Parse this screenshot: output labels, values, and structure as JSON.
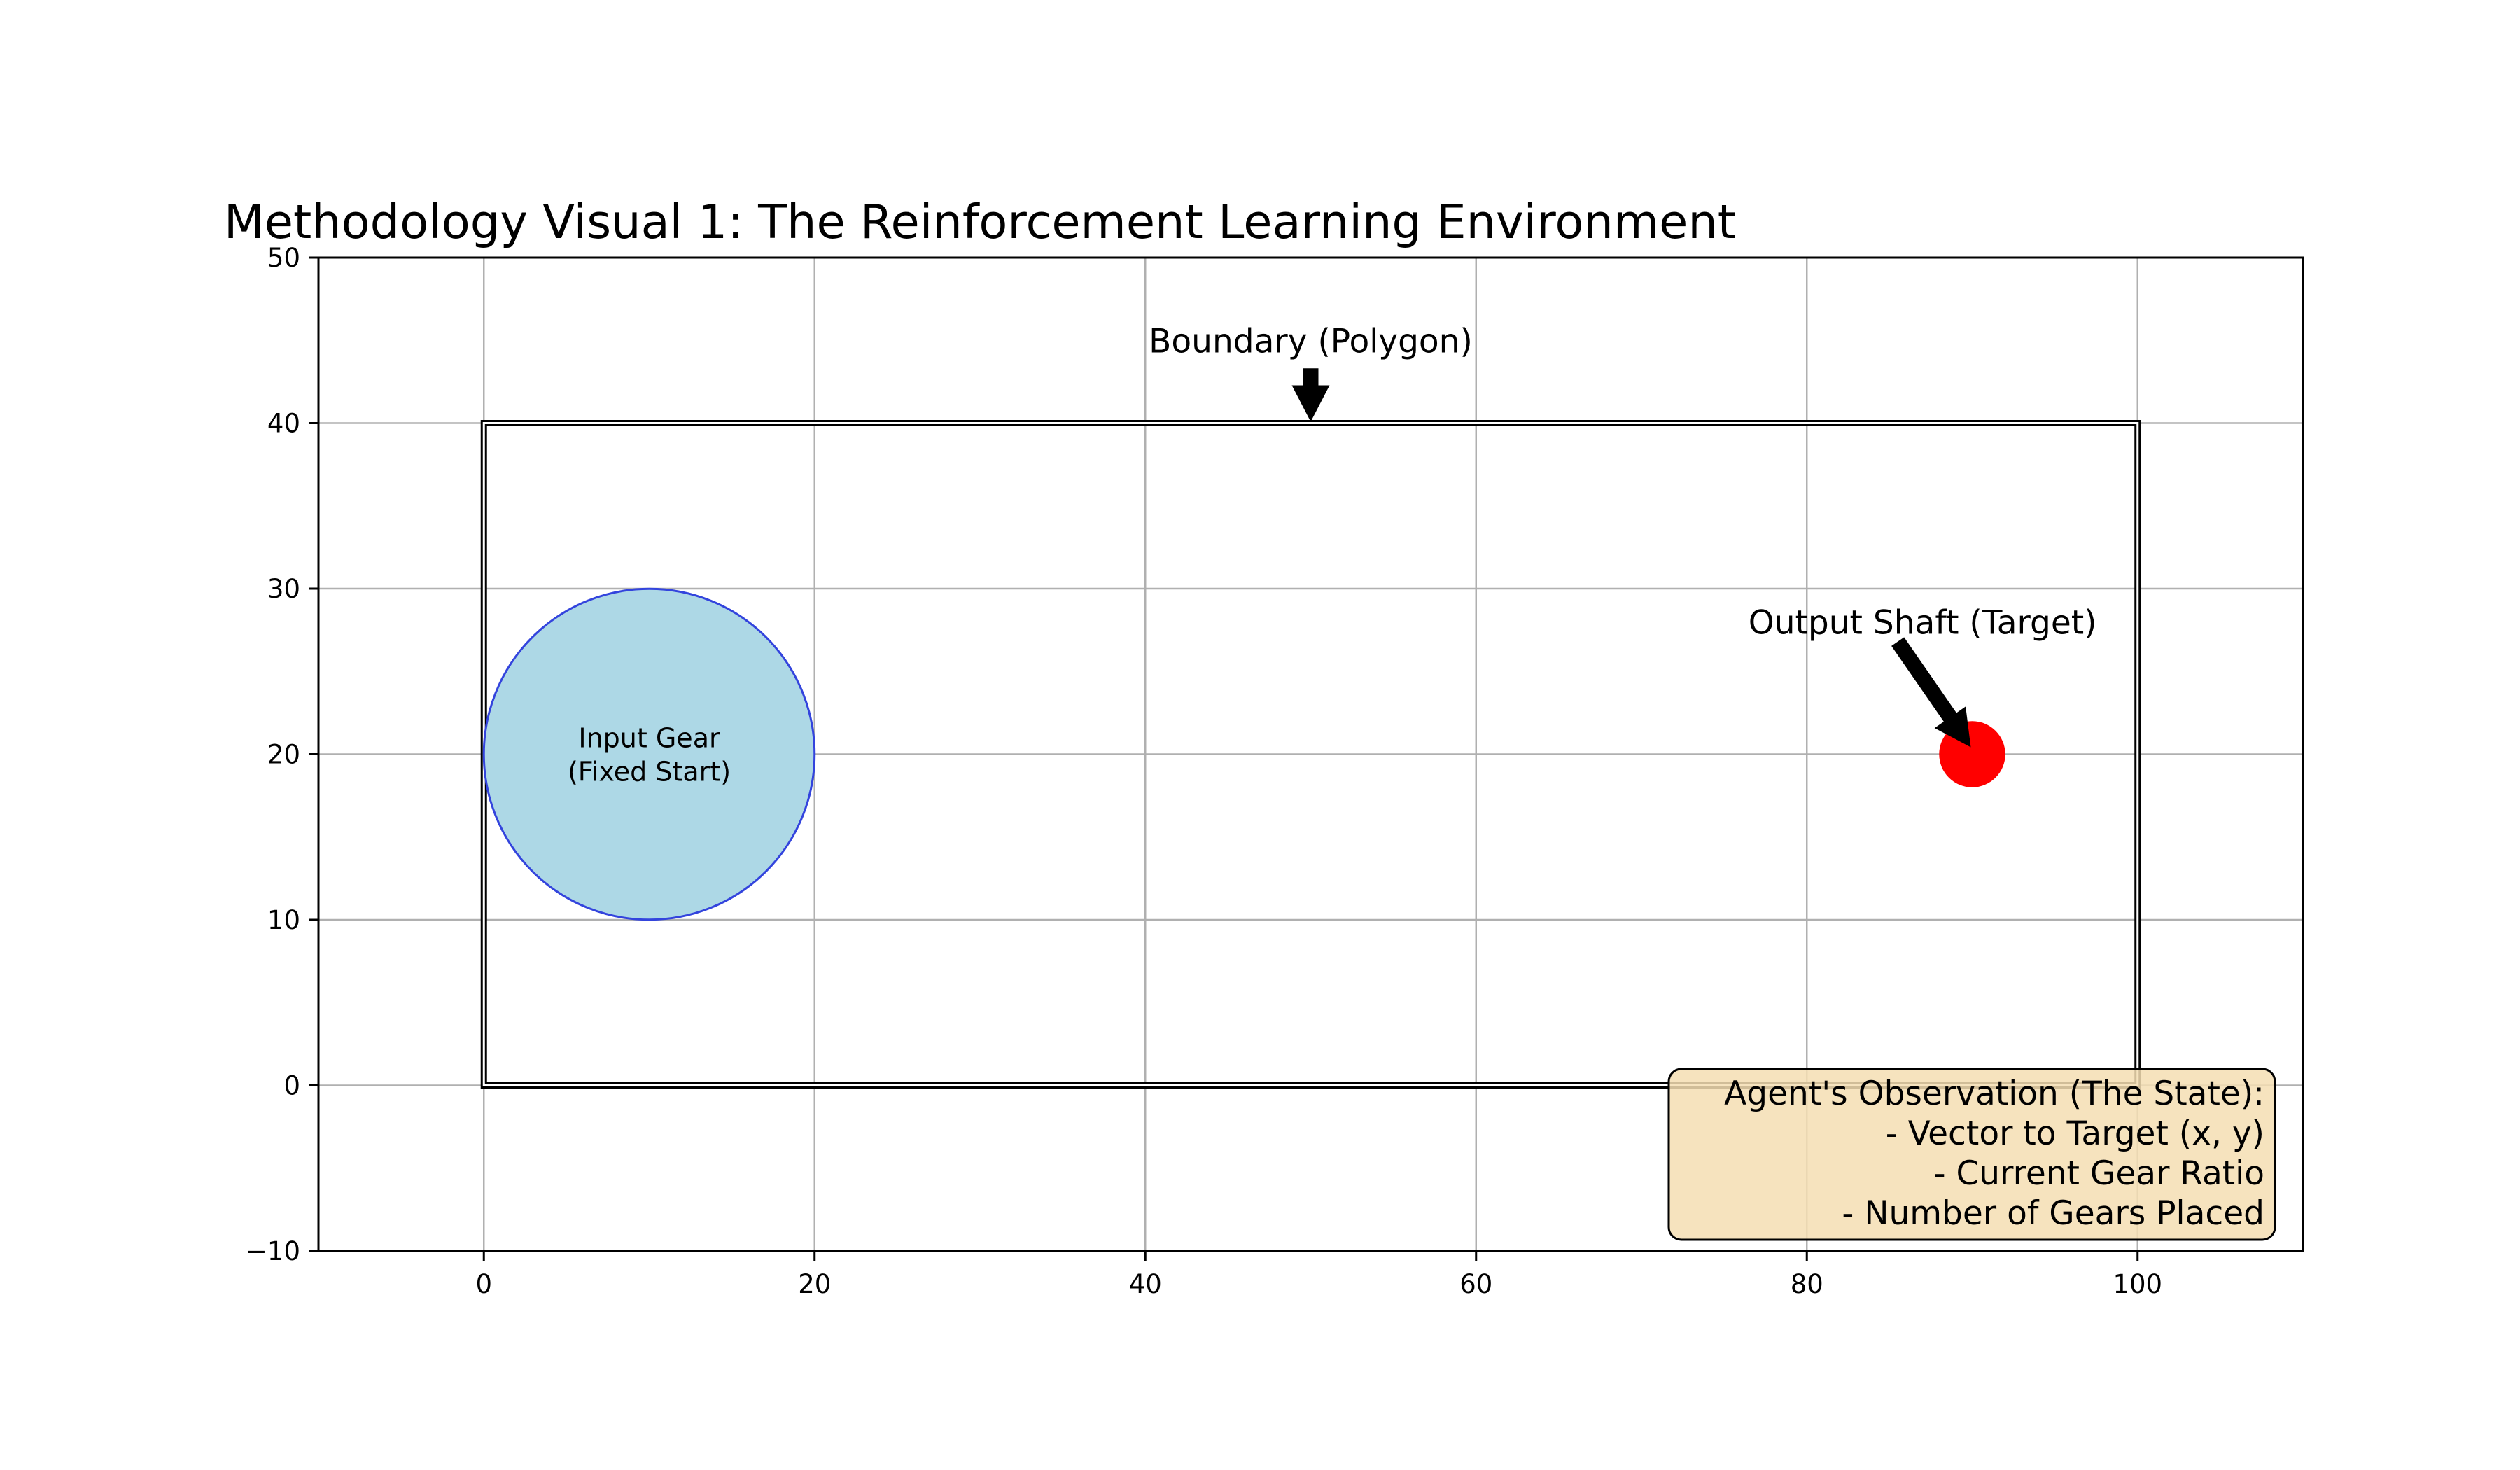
{
  "chart_data": {
    "type": "diagram",
    "title": "Methodology Visual 1: The Reinforcement Learning Environment",
    "xlabel": "",
    "ylabel": "",
    "xlim": [
      -10,
      110
    ],
    "ylim": [
      -10,
      50
    ],
    "grid": true,
    "x_ticks": [
      0,
      20,
      40,
      60,
      80,
      100
    ],
    "y_ticks": [
      -10,
      0,
      10,
      20,
      30,
      40,
      50
    ],
    "x_tick_labels": [
      "0",
      "20",
      "40",
      "60",
      "80",
      "100"
    ],
    "y_tick_labels": [
      "−10",
      "0",
      "10",
      "20",
      "30",
      "40",
      "50"
    ],
    "boundary": {
      "shape": "polygon",
      "points": [
        [
          0,
          0
        ],
        [
          100,
          0
        ],
        [
          100,
          40
        ],
        [
          0,
          40
        ]
      ],
      "label": "Boundary (Polygon)",
      "label_position": [
        50,
        45
      ],
      "arrow_tip": [
        50,
        40
      ]
    },
    "input_gear": {
      "center": [
        10,
        20
      ],
      "radius": 10,
      "fill": "#add8e6",
      "edge": "#3344dd",
      "label_lines": [
        "Input Gear",
        "(Fixed Start)"
      ]
    },
    "output_shaft": {
      "center": [
        90,
        20
      ],
      "radius": 2,
      "fill": "#ff0000",
      "label": "Output Shaft (Target)",
      "label_position": [
        87,
        28
      ],
      "arrow_tip": [
        90,
        20
      ]
    },
    "state_box": {
      "position": "bottom-right",
      "fill": "#f5deb3",
      "lines": [
        "Agent's Observation (The State):",
        "- Vector to Target (x, y)",
        "- Current Gear Ratio",
        "- Number of Gears Placed"
      ]
    }
  }
}
